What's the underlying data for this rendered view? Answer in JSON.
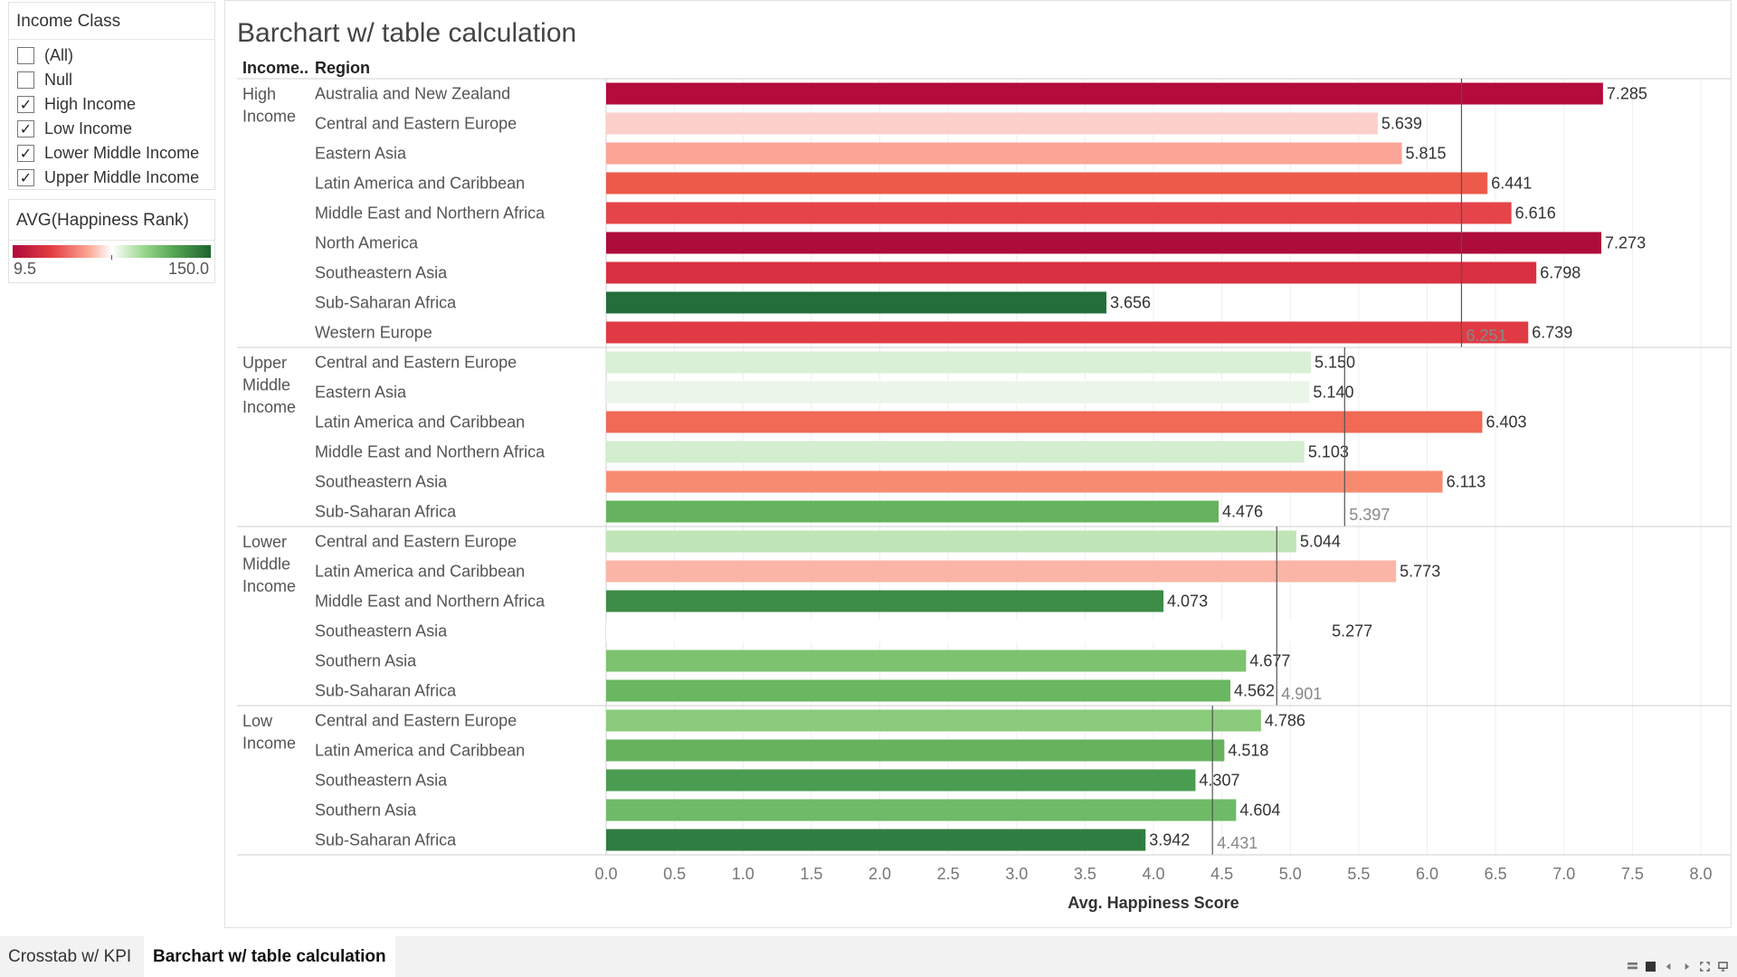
{
  "filter": {
    "title": "Income Class",
    "items": [
      {
        "label": "(All)",
        "checked": false
      },
      {
        "label": "Null",
        "checked": false
      },
      {
        "label": "High Income",
        "checked": true
      },
      {
        "label": "Low Income",
        "checked": true
      },
      {
        "label": "Lower Middle Income",
        "checked": true
      },
      {
        "label": "Upper Middle Income",
        "checked": true
      }
    ]
  },
  "legend": {
    "title": "AVG(Happiness Rank)",
    "min_label": "9.5",
    "max_label": "150.0",
    "colors": [
      "#b0093a",
      "#e33f43",
      "#fca593",
      "#ffffff",
      "#9bd88e",
      "#52a352",
      "#1e6431"
    ]
  },
  "tabs": [
    {
      "label": "Crosstab w/ KPI",
      "active": false
    },
    {
      "label": "Barchart w/ table calculation",
      "active": true
    }
  ],
  "chart_data": {
    "type": "bar",
    "orientation": "horizontal",
    "title": "Barchart w/ table calculation",
    "row_headers": [
      "Income..",
      "Region"
    ],
    "xlabel": "Avg. Happiness Score",
    "xlim": [
      0,
      8
    ],
    "xticks": [
      "0.0",
      "0.5",
      "1.0",
      "1.5",
      "2.0",
      "2.5",
      "3.0",
      "3.5",
      "4.0",
      "4.5",
      "5.0",
      "5.5",
      "6.0",
      "6.5",
      "7.0",
      "7.5",
      "8.0"
    ],
    "grid": true,
    "groups": [
      {
        "name_lines": [
          "High",
          "Income"
        ],
        "reference_value": 6.251,
        "reference_label": "6.251",
        "bars": [
          {
            "region": "Australia and New Zealand",
            "value": 7.285,
            "label": "7.285",
            "color": "#b40b3c"
          },
          {
            "region": "Central and Eastern Europe",
            "value": 5.639,
            "label": "5.639",
            "color": "#fdcfca"
          },
          {
            "region": "Eastern Asia",
            "value": 5.815,
            "label": "5.815",
            "color": "#fca597"
          },
          {
            "region": "Latin America and Caribbean",
            "value": 6.441,
            "label": "6.441",
            "color": "#ed5a4a"
          },
          {
            "region": "Middle East and Northern Africa",
            "value": 6.616,
            "label": "6.616",
            "color": "#e4444a"
          },
          {
            "region": "North America",
            "value": 7.273,
            "label": "7.273",
            "color": "#ae0c3b"
          },
          {
            "region": "Southeastern Asia",
            "value": 6.798,
            "label": "6.798",
            "color": "#d93041"
          },
          {
            "region": "Sub-Saharan Africa",
            "value": 3.656,
            "label": "3.656",
            "color": "#236e3a"
          },
          {
            "region": "Western Europe",
            "value": 6.739,
            "label": "6.739",
            "color": "#e03b44"
          }
        ]
      },
      {
        "name_lines": [
          "Upper",
          "Middle",
          "Income"
        ],
        "reference_value": 5.397,
        "reference_label": "5.397",
        "bars": [
          {
            "region": "Central and Eastern Europe",
            "value": 5.15,
            "label": "5.150",
            "color": "#d9efd6"
          },
          {
            "region": "Eastern Asia",
            "value": 5.14,
            "label": "5.140",
            "color": "#eaf6e8"
          },
          {
            "region": "Latin America and Caribbean",
            "value": 6.403,
            "label": "6.403",
            "color": "#f06a56"
          },
          {
            "region": "Middle East and Northern Africa",
            "value": 5.103,
            "label": "5.103",
            "color": "#d3edcf"
          },
          {
            "region": "Southeastern Asia",
            "value": 6.113,
            "label": "6.113",
            "color": "#f78b72"
          },
          {
            "region": "Sub-Saharan Africa",
            "value": 4.476,
            "label": "4.476",
            "color": "#65b35e"
          }
        ]
      },
      {
        "name_lines": [
          "Lower",
          "Middle",
          "Income"
        ],
        "reference_value": 4.901,
        "reference_label": "4.901",
        "bars": [
          {
            "region": "Central and Eastern Europe",
            "value": 5.044,
            "label": "5.044",
            "color": "#bfe5b7"
          },
          {
            "region": "Latin America and Caribbean",
            "value": 5.773,
            "label": "5.773",
            "color": "#fbb5a6"
          },
          {
            "region": "Middle East and Northern Africa",
            "value": 4.073,
            "label": "4.073",
            "color": "#3d8c47"
          },
          {
            "region": "Southeastern Asia",
            "value": 5.277,
            "label": "5.277",
            "color": "#ffffff"
          },
          {
            "region": "Southern Asia",
            "value": 4.677,
            "label": "4.677",
            "color": "#7cc26f"
          },
          {
            "region": "Sub-Saharan Africa",
            "value": 4.562,
            "label": "4.562",
            "color": "#6ab762"
          }
        ]
      },
      {
        "name_lines": [
          "Low",
          "Income"
        ],
        "reference_value": 4.431,
        "reference_label": "4.431",
        "bars": [
          {
            "region": "Central and Eastern Europe",
            "value": 4.786,
            "label": "4.786",
            "color": "#8acb7c"
          },
          {
            "region": "Latin America and Caribbean",
            "value": 4.518,
            "label": "4.518",
            "color": "#66b25d"
          },
          {
            "region": "Southeastern Asia",
            "value": 4.307,
            "label": "4.307",
            "color": "#4a9c50"
          },
          {
            "region": "Southern Asia",
            "value": 4.604,
            "label": "4.604",
            "color": "#6fba66"
          },
          {
            "region": "Sub-Saharan Africa",
            "value": 3.942,
            "label": "3.942",
            "color": "#2f7d40"
          }
        ]
      }
    ]
  }
}
